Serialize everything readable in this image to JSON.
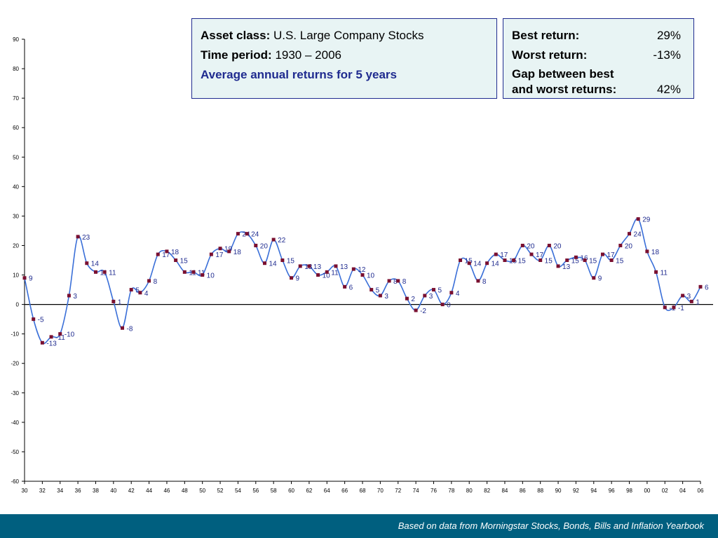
{
  "info": {
    "asset_class_label": "Asset class:",
    "asset_class_value": "U.S. Large Company Stocks",
    "time_period_label": "Time period:",
    "time_period_value": "1930 – 2006",
    "subtitle": "Average annual returns for 5 years"
  },
  "stats": {
    "best_label": "Best return:",
    "best_value": "29%",
    "worst_label": "Worst return:",
    "worst_value": "-13%",
    "gap_label_line1": "Gap between best",
    "gap_label_line2": "and worst returns:",
    "gap_value": "42%"
  },
  "footer": {
    "source": "Based on data from Morningstar Stocks, Bonds, Bills and Inflation Yearbook"
  },
  "colors": {
    "line": "#3a6fd8",
    "marker": "#7a1030",
    "label": "#1f2b8f",
    "box_bg": "#e8f4f4",
    "footer_bg": "#005f7f"
  },
  "chart_data": {
    "type": "line",
    "title": "",
    "xlabel": "",
    "ylabel": "",
    "ylim": [
      -60,
      90
    ],
    "y_ticks": [
      90,
      80,
      70,
      60,
      50,
      40,
      30,
      20,
      10,
      0,
      -10,
      -20,
      -30,
      -40,
      -50,
      -60
    ],
    "x_tick_labels": [
      "30",
      "32",
      "34",
      "36",
      "38",
      "40",
      "42",
      "44",
      "46",
      "48",
      "50",
      "52",
      "54",
      "56",
      "58",
      "60",
      "62",
      "64",
      "66",
      "68",
      "70",
      "72",
      "74",
      "76",
      "78",
      "80",
      "82",
      "84",
      "86",
      "88",
      "90",
      "92",
      "94",
      "96",
      "98",
      "00",
      "02",
      "04",
      "06"
    ],
    "x_start_year": 1930,
    "values": [
      9,
      -5,
      -13,
      -11,
      -10,
      3,
      23,
      14,
      11,
      11,
      1,
      -8,
      5,
      4,
      8,
      17,
      18,
      15,
      11,
      11,
      10,
      17,
      19,
      18,
      24,
      24,
      20,
      14,
      22,
      15,
      9,
      13,
      13,
      10,
      11,
      13,
      6,
      12,
      10,
      5,
      3,
      8,
      8,
      2,
      -2,
      3,
      5,
      0,
      4,
      15,
      14,
      8,
      14,
      17,
      15,
      15,
      20,
      17,
      15,
      20,
      13,
      15,
      16,
      15,
      9,
      17,
      15,
      20,
      24,
      29,
      18,
      11,
      -1,
      -1,
      3,
      1,
      6
    ],
    "grid": false,
    "legend": "none"
  }
}
